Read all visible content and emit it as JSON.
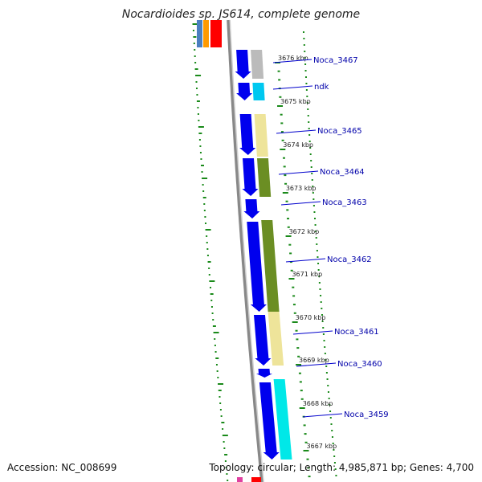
{
  "title": "Nocardioides sp. JS614, complete genome",
  "footer": {
    "accession": "Accession: NC_008699",
    "summary": "Topology: circular; Length: 4,985,871 bp; Genes: 4,700"
  },
  "colors": {
    "backbone": "#888888",
    "cds_forward": "#0000ee",
    "tick": "#1a8a1a",
    "label_line": "#0000cc",
    "cat_gray": "#bbbbbb",
    "cat_lightblue": "#00c8f0",
    "cat_khaki": "#eee49a",
    "cat_olive": "#6b8e23",
    "cat_cyan": "#00e8e8"
  },
  "ticks": [
    {
      "label": "3676 kbp"
    },
    {
      "label": "3675 kbp"
    },
    {
      "label": "3674 kbp"
    },
    {
      "label": "3673 kbp"
    },
    {
      "label": "3672 kbp"
    },
    {
      "label": "3671 kbp"
    },
    {
      "label": "3670 kbp"
    },
    {
      "label": "3669 kbp"
    },
    {
      "label": "3668 kbp"
    },
    {
      "label": "3667 kbp"
    }
  ],
  "genes": [
    {
      "name": "Noca_3467",
      "category": "cat_gray"
    },
    {
      "name": "ndk",
      "category": "cat_lightblue"
    },
    {
      "name": "Noca_3465",
      "category": "cat_khaki"
    },
    {
      "name": "Noca_3464",
      "category": "cat_olive"
    },
    {
      "name": "Noca_3463",
      "category": "none"
    },
    {
      "name": "Noca_3462",
      "category": "cat_olive"
    },
    {
      "name": "Noca_3461",
      "category": "cat_khaki"
    },
    {
      "name": "Noca_3460",
      "category": "none"
    },
    {
      "name": "Noca_3459",
      "category": "cat_cyan"
    }
  ]
}
